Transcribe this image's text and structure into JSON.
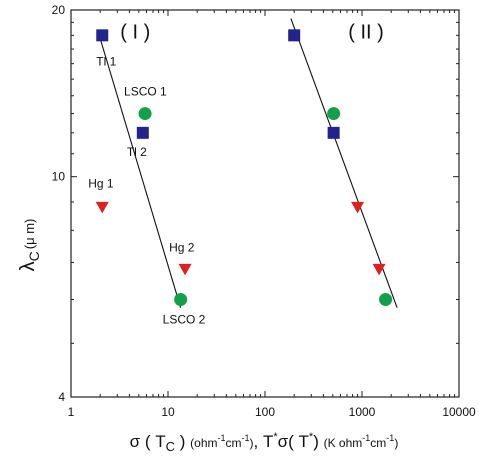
{
  "chart_data": {
    "type": "scatter",
    "x_scale": "log",
    "y_scale": "log",
    "xlim": [
      1,
      10000
    ],
    "ylim": [
      4,
      20
    ],
    "x_ticks": [
      1,
      10,
      100,
      1000,
      10000
    ],
    "x_tick_labels": [
      "1",
      "10",
      "100",
      "1000",
      "10000"
    ],
    "y_ticks": [
      4,
      10,
      20
    ],
    "y_tick_labels": [
      "4",
      "10",
      "20"
    ],
    "grid": false,
    "legend": "none",
    "xlabel": {
      "part1": "σ ( T",
      "part1_sub": "C",
      "part2": " ) ",
      "unit1": "(ohm",
      "unit1_sup1": "-1",
      "unit1_mid": "cm",
      "unit1_sup2": "-1",
      "unit1_end": ")",
      "sep": ", ",
      "part3": "T",
      "part3_sup": "*",
      "part4": "σ( T",
      "part4_sup": "*",
      "part5": ") ",
      "unit2": "(K ohm",
      "unit2_sup1": "-1",
      "unit2_mid": "cm",
      "unit2_sup2": "-1",
      "unit2_end": ")"
    },
    "ylabel": {
      "symbol": "λ",
      "sub": "C",
      "unit": "(μ m)"
    },
    "panel_labels": [
      {
        "text": "( I )",
        "x": 4.6,
        "y": 18.3
      },
      {
        "text": "( II )",
        "x": 1100,
        "y": 18.3
      }
    ],
    "series": [
      {
        "marker": "square",
        "color": "#23238e",
        "points": [
          [
            2.1,
            18.0
          ],
          [
            5.5,
            12.0
          ],
          [
            200,
            18.0
          ],
          [
            510,
            12.0
          ]
        ]
      },
      {
        "marker": "circle",
        "color": "#12a04a",
        "points": [
          [
            5.8,
            13.0
          ],
          [
            13.5,
            6.0
          ],
          [
            510,
            13.0
          ],
          [
            1750,
            6.0
          ]
        ]
      },
      {
        "marker": "triangle-down",
        "color": "#e02020",
        "points": [
          [
            2.1,
            8.8
          ],
          [
            15.0,
            6.8
          ],
          [
            900,
            8.8
          ],
          [
            1500,
            6.8
          ]
        ]
      }
    ],
    "fit_lines": [
      {
        "from": [
          1.9,
          18.3
        ],
        "to": [
          13.5,
          5.8
        ]
      },
      {
        "from": [
          185,
          19.3
        ],
        "to": [
          2300,
          5.8
        ]
      }
    ],
    "annotations": [
      {
        "text": "Tl 1",
        "x": 2.1,
        "y": 18.0,
        "dx": -6,
        "dy": 30
      },
      {
        "text": "LSCO 1",
        "x": 5.8,
        "y": 13.0,
        "dx": -21,
        "dy": -18
      },
      {
        "text": "Tl 2",
        "x": 5.5,
        "y": 12.0,
        "dx": -16,
        "dy": 23
      },
      {
        "text": "Hg 1",
        "x": 2.1,
        "y": 8.8,
        "dx": -14,
        "dy": -20
      },
      {
        "text": "Hg 2",
        "x": 15.0,
        "y": 6.8,
        "dx": -16,
        "dy": -18
      },
      {
        "text": "LSCO 2",
        "x": 13.5,
        "y": 6.0,
        "dx": -18,
        "dy": 24
      }
    ]
  }
}
